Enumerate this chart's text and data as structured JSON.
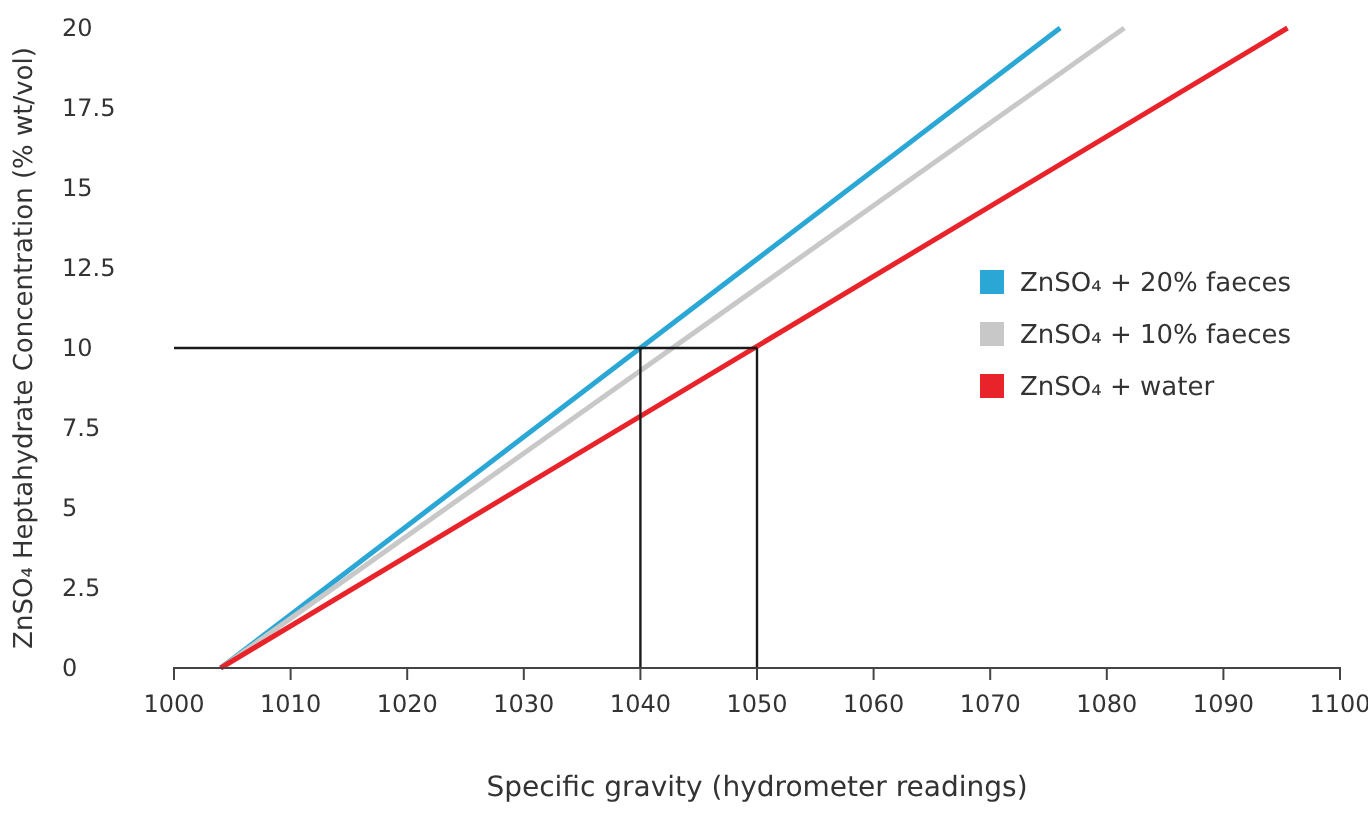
{
  "chart_data": {
    "type": "line",
    "xlabel": "Specific gravity (hydrometer readings)",
    "ylabel": "ZnSO₄ Heptahydrate Concentration (% wt/vol)",
    "xlim": [
      1000,
      1100
    ],
    "xticks": [
      1000,
      1010,
      1020,
      1030,
      1040,
      1050,
      1060,
      1070,
      1080,
      1090,
      1100
    ],
    "ylim": [
      0,
      20
    ],
    "yticks": [
      0,
      {
        "value": 2.5,
        "label": "2.5"
      },
      5,
      {
        "value": 7.5,
        "label": "7.5"
      },
      10,
      {
        "value": 12.5,
        "label": "12.5"
      },
      15,
      {
        "value": 17.5,
        "label": "17.5"
      },
      20
    ],
    "grid": false,
    "legend": "right",
    "marker": "none",
    "line_style": "solid",
    "series": [
      {
        "name": "ZnSO₄ + 20% faeces",
        "color": "#2aa7d4",
        "x": [
          1004,
          1076
        ],
        "values": [
          0,
          20
        ]
      },
      {
        "name": "ZnSO₄ + 10% faeces",
        "color": "#c8c8c8",
        "x": [
          1004,
          1081.5
        ],
        "values": [
          0,
          20
        ]
      },
      {
        "name": "ZnSO₄ + water",
        "color": "#e8232a",
        "x": [
          1004,
          1095.5
        ],
        "values": [
          0,
          20
        ]
      },
      {
        "color": "#1a1a1a",
        "x": [
          1000,
          1050
        ],
        "values": [
          10,
          10
        ]
      },
      {
        "color": "#1a1a1a",
        "x": [
          1040,
          1040
        ],
        "values": [
          0,
          10
        ]
      },
      {
        "color": "#1a1a1a",
        "x": [
          1050,
          1050
        ],
        "values": [
          0,
          10
        ]
      }
    ]
  }
}
